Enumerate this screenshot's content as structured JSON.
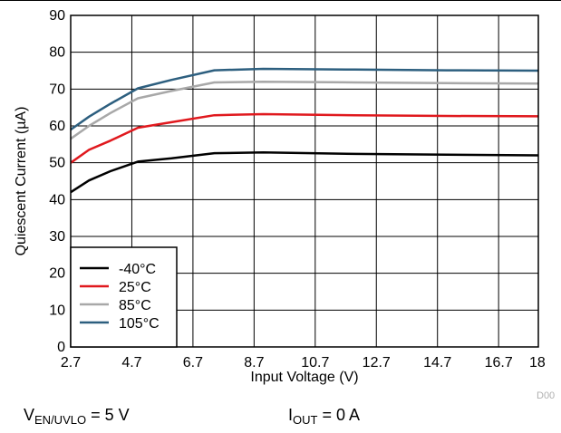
{
  "chart_data": {
    "type": "line",
    "title": "",
    "xlabel": "Input Voltage (V)",
    "ylabel": "Quiescent Current (µA)",
    "xlim": [
      2.7,
      18
    ],
    "ylim": [
      0,
      90
    ],
    "x_ticks": [
      2.7,
      4.7,
      6.7,
      8.7,
      10.7,
      12.7,
      14.7,
      16.7,
      18
    ],
    "x_tick_labels": [
      "2.7",
      "4.7",
      "6.7",
      "8.7",
      "10.7",
      "12.7",
      "14.7",
      "16.7",
      "18"
    ],
    "y_ticks": [
      0,
      10,
      20,
      30,
      40,
      50,
      60,
      70,
      80,
      90
    ],
    "y_tick_labels": [
      "0",
      "10",
      "20",
      "30",
      "40",
      "50",
      "60",
      "70",
      "80",
      "90"
    ],
    "grid": true,
    "legend_position": "bottom-left",
    "series": [
      {
        "name": "-40°C",
        "color": "#000000",
        "x": [
          2.7,
          3.3,
          4.0,
          4.9,
          6.0,
          7.4,
          9.0,
          12.0,
          15.0,
          18.0
        ],
        "y": [
          42.0,
          45.2,
          47.7,
          50.3,
          51.2,
          52.6,
          52.8,
          52.4,
          52.2,
          52.0
        ]
      },
      {
        "name": "25°C",
        "color": "#e0191e",
        "x": [
          2.7,
          3.3,
          4.0,
          4.9,
          6.0,
          7.4,
          9.0,
          12.0,
          15.0,
          18.0
        ],
        "y": [
          50.0,
          53.5,
          56.0,
          59.5,
          61.0,
          62.9,
          63.2,
          62.9,
          62.7,
          62.6
        ]
      },
      {
        "name": "85°C",
        "color": "#a8a8a8",
        "x": [
          2.7,
          3.3,
          4.0,
          4.9,
          6.0,
          7.4,
          9.0,
          12.0,
          15.0,
          18.0
        ],
        "y": [
          56.5,
          60.0,
          63.5,
          67.5,
          69.5,
          71.8,
          72.0,
          71.8,
          71.6,
          71.5
        ]
      },
      {
        "name": "105°C",
        "color": "#2d5f7f",
        "x": [
          2.7,
          3.3,
          4.0,
          4.9,
          6.0,
          7.4,
          9.0,
          12.0,
          15.0,
          18.0
        ],
        "y": [
          59.0,
          62.5,
          66.0,
          70.2,
          72.5,
          75.1,
          75.5,
          75.3,
          75.1,
          75.0
        ]
      }
    ]
  },
  "doc_code": "D00",
  "captions": {
    "left_prefix": "V",
    "left_sub": "EN/UVLO",
    "left_suffix": " = 5 V",
    "right_prefix": "I",
    "right_sub": "OUT",
    "right_suffix": " = 0 A"
  }
}
